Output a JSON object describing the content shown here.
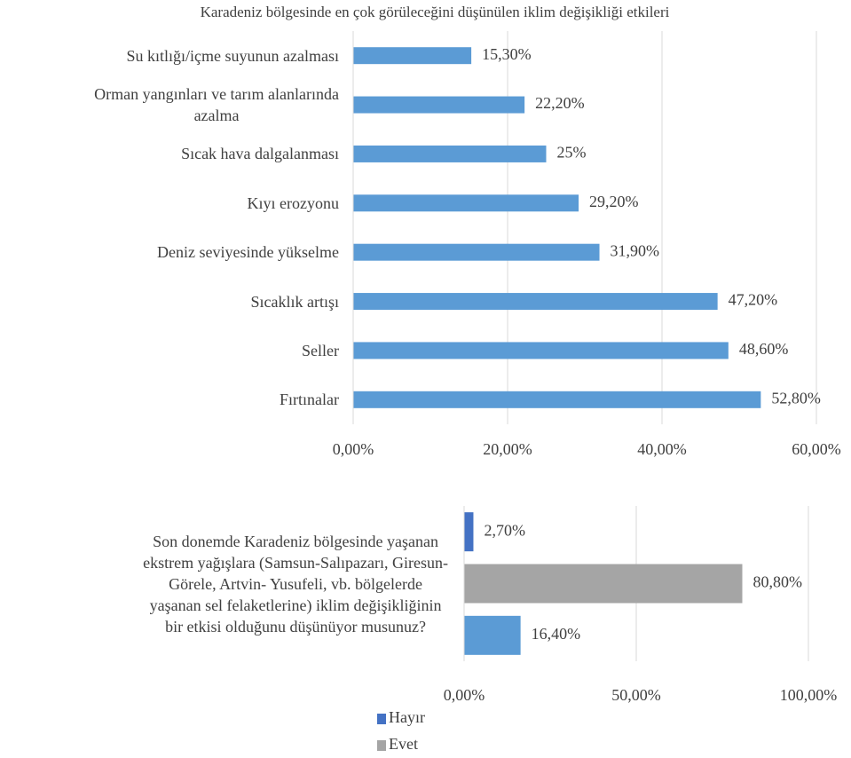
{
  "chart_data": [
    {
      "type": "hbar",
      "title": "Karadeniz bölgesinde en çok görüleceğini düşünülen iklim değişikliği etkileri",
      "categories": [
        "Su kıtlığı/içme suyunun azalması",
        "Orman yangınları ve tarım alanlarında\nazalma",
        "Sıcak hava dalgalanması",
        "Kıyı erozyonu",
        "Deniz seviyesinde yükselme",
        "Sıcaklık artışı",
        "Seller",
        "Fırtınalar"
      ],
      "values": [
        15.3,
        22.2,
        25,
        29.2,
        31.9,
        47.2,
        48.6,
        52.8
      ],
      "value_labels": [
        "15,30%",
        "22,20%",
        "25%",
        "29,20%",
        "31,90%",
        "47,20%",
        "48,60%",
        "52,80%"
      ],
      "color": "#5b9bd5",
      "xlim": [
        0,
        60
      ],
      "xticks": [
        {
          "value": 0,
          "label": "0,00%"
        },
        {
          "value": 20,
          "label": "20,00%"
        },
        {
          "value": 40,
          "label": "40,00%"
        },
        {
          "value": 60,
          "label": "60,00%"
        }
      ],
      "grid": true
    },
    {
      "type": "hbar",
      "categories": [
        "Son donemde Karadeniz bölgesinde yaşanan\nekstrem yağışlara (Samsun-Salıpazarı, Giresun-\nGörele, Artvin- Yusufeli, vb. bölgelerde\nyaşanan sel felaketlerine) iklim değişikliğinin\nbir etkisi olduğunu düşünüyor musunuz?"
      ],
      "series": [
        {
          "name": "Hayır",
          "color": "#4472c4",
          "values": [
            2.7
          ],
          "value_labels": [
            "2,70%"
          ]
        },
        {
          "name": "Evet",
          "color": "#a5a5a5",
          "values": [
            80.8
          ],
          "value_labels": [
            "80,80%"
          ]
        },
        {
          "name": null,
          "color": "#5b9bd5",
          "values": [
            16.4
          ],
          "value_labels": [
            "16,40%"
          ]
        }
      ],
      "xlim": [
        0,
        100
      ],
      "xticks": [
        {
          "value": 0,
          "label": "0,00%"
        },
        {
          "value": 50,
          "label": "50,00%"
        },
        {
          "value": 100,
          "label": "100,00%"
        }
      ],
      "grid": true,
      "legend": "bottom"
    }
  ]
}
